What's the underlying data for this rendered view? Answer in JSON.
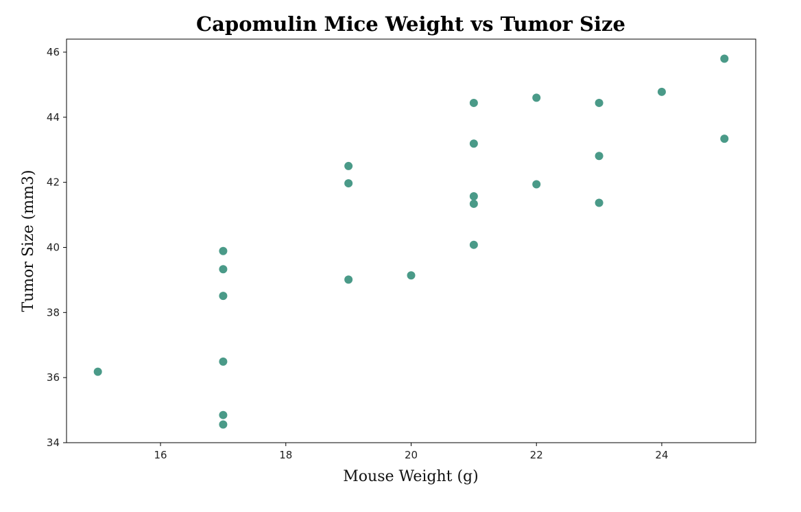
{
  "chart_data": {
    "type": "scatter",
    "title": "Capomulin Mice Weight vs Tumor Size",
    "xlabel": "Mouse Weight (g)",
    "ylabel": "Tumor Size (mm3)",
    "xlim": [
      14.5,
      25.5
    ],
    "ylim": [
      34,
      46.4
    ],
    "xticks": [
      16,
      18,
      20,
      22,
      24
    ],
    "yticks": [
      34,
      36,
      38,
      40,
      42,
      44,
      46
    ],
    "grid": false,
    "marker_color": "#4a9a88",
    "points": [
      {
        "x": 15,
        "y": 36.18
      },
      {
        "x": 17,
        "y": 39.89
      },
      {
        "x": 17,
        "y": 39.33
      },
      {
        "x": 17,
        "y": 38.51
      },
      {
        "x": 17,
        "y": 36.49
      },
      {
        "x": 17,
        "y": 34.85
      },
      {
        "x": 17,
        "y": 34.56
      },
      {
        "x": 19,
        "y": 42.5
      },
      {
        "x": 19,
        "y": 41.97
      },
      {
        "x": 19,
        "y": 39.01
      },
      {
        "x": 20,
        "y": 39.14
      },
      {
        "x": 21,
        "y": 44.44
      },
      {
        "x": 21,
        "y": 43.19
      },
      {
        "x": 21,
        "y": 41.57
      },
      {
        "x": 21,
        "y": 41.34
      },
      {
        "x": 21,
        "y": 40.08
      },
      {
        "x": 22,
        "y": 44.6
      },
      {
        "x": 22,
        "y": 41.94
      },
      {
        "x": 23,
        "y": 44.44
      },
      {
        "x": 23,
        "y": 42.81
      },
      {
        "x": 23,
        "y": 41.37
      },
      {
        "x": 24,
        "y": 44.78
      },
      {
        "x": 25,
        "y": 45.8
      },
      {
        "x": 25,
        "y": 43.34
      }
    ]
  }
}
